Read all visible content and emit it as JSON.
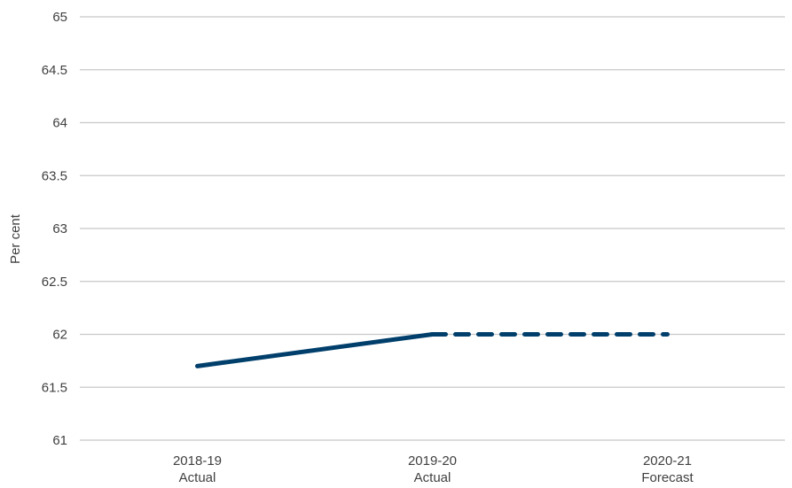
{
  "chart_data": {
    "type": "line",
    "ylabel": "Per cent",
    "ylim": [
      61,
      65
    ],
    "yticks": [
      "61",
      "61.5",
      "62",
      "62.5",
      "63",
      "63.5",
      "64",
      "64.5",
      "65"
    ],
    "categories": [
      {
        "line1": "2018-19",
        "line2": "Actual"
      },
      {
        "line1": "2019-20",
        "line2": "Actual"
      },
      {
        "line1": "2020-21",
        "line2": "Forecast"
      }
    ],
    "series": [
      {
        "style": "solid",
        "color": "#003f6b",
        "values": [
          61.7,
          62.0,
          null
        ]
      },
      {
        "style": "dashed",
        "color": "#003f6b",
        "values": [
          null,
          62.0,
          62.0
        ]
      }
    ],
    "grid": true
  }
}
